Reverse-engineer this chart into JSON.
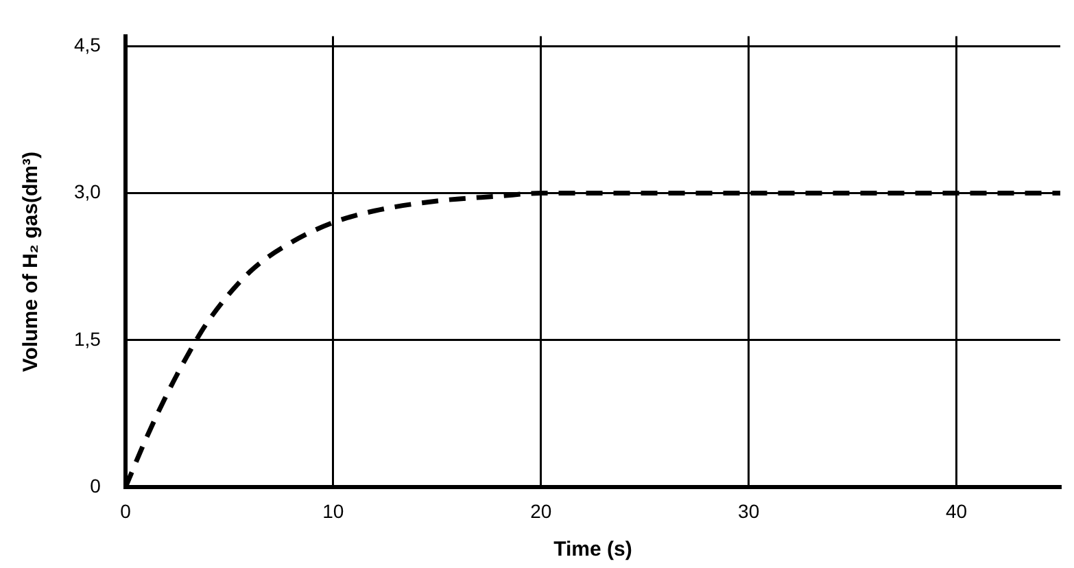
{
  "chart_data": {
    "type": "line",
    "xlabel": "Time (s)",
    "ylabel": "Volume of H₂ gas(dm³)",
    "x": [
      0,
      1,
      2,
      3,
      4,
      6,
      8,
      10,
      12,
      15,
      18,
      20,
      25,
      30,
      35,
      40,
      45
    ],
    "series": [
      {
        "color": "#000000",
        "values": [
          0,
          0.5,
          0.95,
          1.35,
          1.7,
          2.2,
          2.5,
          2.7,
          2.82,
          2.92,
          2.97,
          3.0,
          3.0,
          3.0,
          3.0,
          3.0,
          3.0
        ]
      }
    ],
    "xlim": [
      0,
      45
    ],
    "xticks": [
      0,
      10,
      20,
      30,
      40
    ],
    "ylim": [
      0,
      4.6
    ],
    "yticks": [
      0,
      {
        "value": 1.5,
        "label": "1,5"
      },
      {
        "value": 3.0,
        "label": "3,0"
      },
      {
        "value": 4.5,
        "label": "4,5"
      }
    ],
    "grid": true,
    "legend": false,
    "marker": "none",
    "line_style": "dashed"
  }
}
